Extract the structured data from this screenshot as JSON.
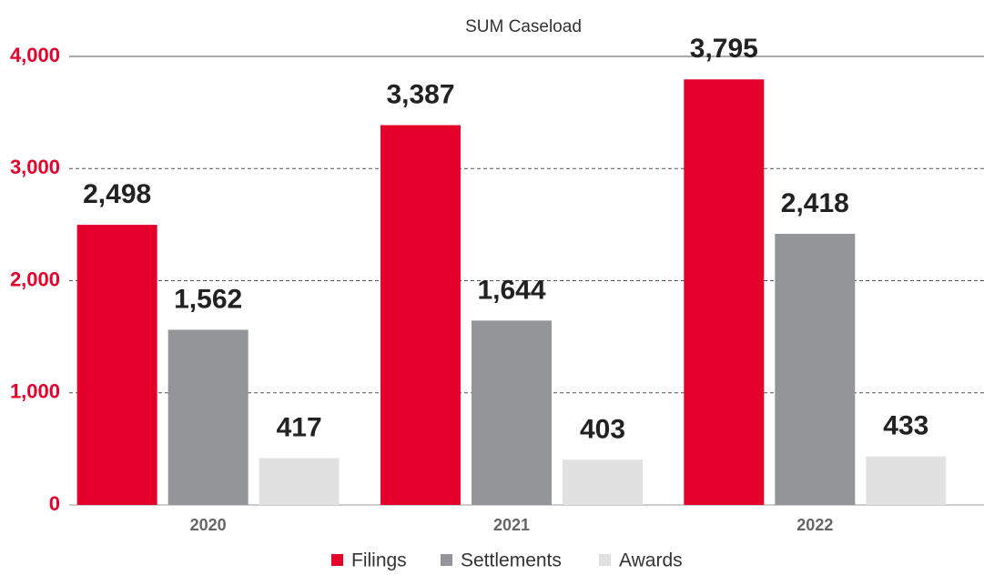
{
  "chart_data": {
    "type": "bar",
    "title": "SUM Caseload",
    "categories": [
      "2020",
      "2021",
      "2022"
    ],
    "series": [
      {
        "name": "Filings",
        "color": "#e4002b",
        "values": [
          2498,
          3387,
          3795
        ],
        "value_labels": [
          "2,498",
          "3,387",
          "3,795"
        ]
      },
      {
        "name": "Settlements",
        "color": "#939598",
        "values": [
          1562,
          1644,
          2418
        ],
        "value_labels": [
          "1,562",
          "1,644",
          "2,418"
        ]
      },
      {
        "name": "Awards",
        "color": "#e1e1e1",
        "values": [
          417,
          403,
          433
        ],
        "value_labels": [
          "417",
          "403",
          "433"
        ]
      }
    ],
    "ylim": [
      0,
      4000
    ],
    "yticks": [
      0,
      {
        "value": 1000,
        "label": "1,000"
      },
      {
        "value": 2000,
        "label": "2,000"
      },
      {
        "value": 3000,
        "label": "3,000"
      },
      {
        "value": 4000,
        "label": "4,000"
      }
    ],
    "grid": true,
    "legend": "bottom"
  }
}
